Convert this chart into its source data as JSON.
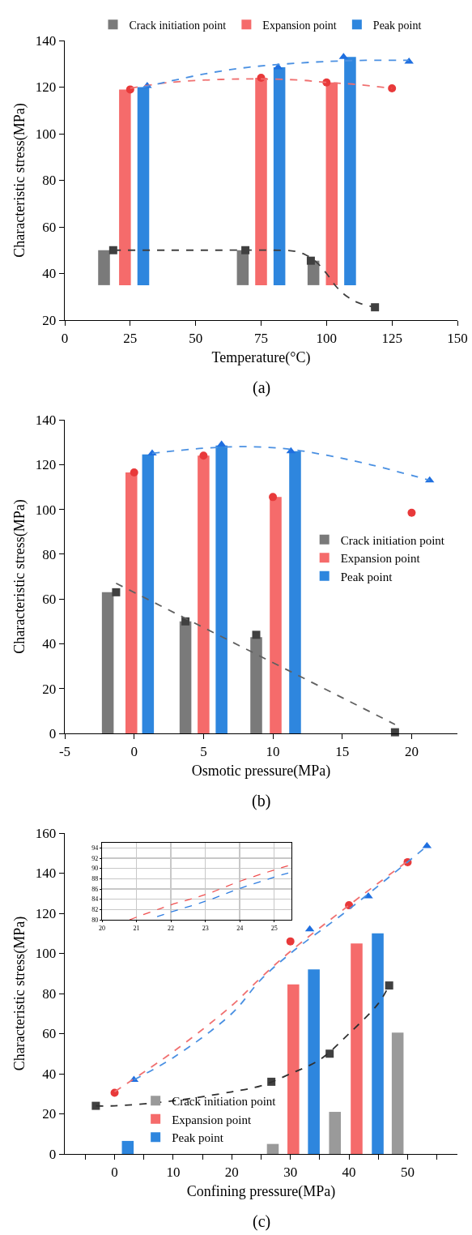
{
  "chart_data": [
    {
      "type": "bar",
      "xlabel": "Temperature(°C)",
      "ylabel": "Characteristic stress(MPa)",
      "annotations": [
        "(a)"
      ],
      "xlim": [
        0,
        150
      ],
      "xticks": [
        0,
        25,
        50,
        75,
        100,
        125,
        150
      ],
      "ylim": [
        20,
        140
      ],
      "yticks": [
        20,
        40,
        60,
        80,
        100,
        120,
        140
      ],
      "legend": "top",
      "series": [
        {
          "name": "Crack initiation point",
          "color": "#7a7a7a",
          "x": [
            15,
            68,
            95
          ],
          "base": [
            35,
            35,
            35
          ],
          "values": [
            15,
            15,
            10.5
          ]
        },
        {
          "name": "Expansion point",
          "color": "#f56b6b",
          "x": [
            23,
            75,
            102
          ],
          "base": [
            35,
            35,
            35
          ],
          "values": [
            84,
            89,
            87
          ]
        },
        {
          "name": "Peak point",
          "color": "#2e86de",
          "x": [
            30,
            82,
            109
          ],
          "base": [
            35,
            35,
            35
          ],
          "values": [
            85,
            93.5,
            98
          ]
        },
        {
          "type": "scatter",
          "marker": "square",
          "color": "#404040",
          "x": [
            18.5,
            69,
            94,
            118.5
          ],
          "values": [
            50,
            50,
            45.5,
            25.5
          ]
        },
        {
          "type": "scatter",
          "marker": "circle",
          "color": "#e8393a",
          "x": [
            25,
            75,
            100,
            125
          ],
          "values": [
            119,
            124,
            122,
            119.5
          ]
        },
        {
          "type": "scatter",
          "marker": "triangle",
          "color": "#1f6fe0",
          "x": [
            31.5,
            81.5,
            106.5,
            131.5
          ],
          "values": [
            120.5,
            128.5,
            133,
            131
          ]
        },
        {
          "type": "line",
          "line_style": "dashed",
          "color": "#404040",
          "x": [
            18.5,
            40,
            60,
            80,
            88,
            92,
            96,
            100,
            104,
            108,
            112,
            118.5
          ],
          "values": [
            50,
            50,
            50,
            50,
            49.5,
            48,
            45,
            40,
            34,
            30,
            27.5,
            25.5
          ]
        },
        {
          "type": "line",
          "line_style": "dashed",
          "color": "#f07070",
          "x": [
            25,
            40,
            60,
            75,
            90,
            100,
            110,
            125
          ],
          "values": [
            119.5,
            122,
            123.3,
            123.5,
            123,
            122,
            121.3,
            119.5
          ]
        },
        {
          "type": "line",
          "line_style": "dashed",
          "color": "#4a90e2",
          "x": [
            30,
            40,
            55,
            70,
            85,
            100,
            115,
            131.5
          ],
          "values": [
            120,
            122.5,
            126,
            128.5,
            130,
            131,
            131.5,
            131.5
          ]
        }
      ]
    },
    {
      "type": "bar",
      "xlabel": "Osmotic pressure(MPa)",
      "ylabel": "Characteristic stress(MPa)",
      "annotations": [
        "(b)"
      ],
      "xlim": [
        -5,
        23.3
      ],
      "xticks": [
        -5,
        0,
        5,
        10,
        15,
        20
      ],
      "ylim": [
        0,
        140
      ],
      "yticks": [
        0,
        20,
        40,
        60,
        80,
        100,
        120,
        140
      ],
      "legend": "right",
      "series": [
        {
          "name": "Crack initiation point",
          "color": "#7a7a7a",
          "x": [
            -1.9,
            3.7,
            8.8
          ],
          "values": [
            63,
            50,
            43
          ]
        },
        {
          "name": "Expansion point",
          "color": "#f56b6b",
          "x": [
            -0.2,
            5,
            10.2
          ],
          "values": [
            116.5,
            124,
            105.5
          ]
        },
        {
          "name": "Peak point",
          "color": "#2e86de",
          "x": [
            1,
            6.3,
            11.6
          ],
          "values": [
            124.5,
            128.5,
            126
          ]
        },
        {
          "type": "scatter",
          "marker": "square",
          "color": "#404040",
          "x": [
            -1.3,
            3.7,
            8.8,
            18.8
          ],
          "values": [
            63,
            50,
            44,
            0.5
          ]
        },
        {
          "type": "scatter",
          "marker": "circle",
          "color": "#e8393a",
          "x": [
            0,
            5,
            10,
            20
          ],
          "values": [
            116.5,
            124,
            105.5,
            98.5
          ]
        },
        {
          "type": "scatter",
          "marker": "triangle",
          "color": "#1f6fe0",
          "x": [
            1.3,
            6.3,
            11.3,
            21.3
          ],
          "values": [
            125,
            129,
            126,
            113
          ]
        },
        {
          "type": "line",
          "line_style": "dashed",
          "color": "#606060",
          "x": [
            -1.3,
            18.8
          ],
          "values": [
            67,
            4
          ]
        },
        {
          "type": "line",
          "line_style": "dashed",
          "color": "#4a90e2",
          "x": [
            1.3,
            5,
            8,
            11,
            14,
            17,
            21.3
          ],
          "values": [
            125,
            127.3,
            128,
            127,
            124,
            120,
            113
          ]
        }
      ]
    },
    {
      "type": "bar",
      "xlabel": "Confining pressure(MPa)",
      "ylabel": "Characteristic stress(MPa)",
      "annotations": [
        "(c)"
      ],
      "xlim": [
        -8.5,
        58.5
      ],
      "xticks": [
        {
          "value": -5,
          "label": null
        },
        0,
        {
          "value": 5,
          "label": null
        },
        10,
        {
          "value": 15,
          "label": null
        },
        20,
        {
          "value": 25,
          "label": null
        },
        30,
        {
          "value": 35,
          "label": null
        },
        40,
        {
          "value": 45,
          "label": null
        },
        50,
        {
          "value": 55,
          "label": null
        }
      ],
      "ylim": [
        0,
        160
      ],
      "yticks": [
        0,
        20,
        40,
        60,
        80,
        100,
        120,
        140,
        160
      ],
      "legend": "bottom left",
      "series": [
        {
          "name": "Crack initiation point",
          "color": "#9a9a9a",
          "x": [
            27,
            37.6,
            48.3
          ],
          "values": [
            5,
            21,
            60.5
          ]
        },
        {
          "name": "Expansion point",
          "color": "#f56b6b",
          "x": [
            30.5,
            41.3
          ],
          "values": [
            84.5,
            105
          ]
        },
        {
          "name": "Peak point",
          "color": "#2e86de",
          "x": [
            2.25,
            34,
            44.9
          ],
          "values": [
            6.5,
            92,
            110
          ]
        },
        {
          "type": "scatter",
          "marker": "square",
          "color": "#404040",
          "x": [
            -3.2,
            26.75,
            36.7,
            46.85
          ],
          "values": [
            24,
            36,
            50,
            84
          ]
        },
        {
          "type": "scatter",
          "marker": "circle",
          "color": "#e8393a",
          "x": [
            0,
            30,
            40,
            50
          ],
          "values": [
            30.5,
            106,
            124,
            145.5
          ]
        },
        {
          "type": "scatter",
          "marker": "triangle",
          "color": "#1f6fe0",
          "x": [
            3.3,
            33.3,
            43.3,
            53.3
          ],
          "values": [
            37,
            112,
            128.5,
            153.5
          ]
        },
        {
          "type": "line",
          "line_style": "dashed",
          "color": "#303030",
          "x": [
            -3.2,
            0,
            10,
            20,
            25,
            30,
            35,
            40,
            45,
            46.85
          ],
          "values": [
            24,
            24,
            26.5,
            31,
            34,
            40,
            47,
            60,
            75,
            84
          ]
        },
        {
          "type": "line",
          "line_style": "dashed",
          "color": "#f07070",
          "x": [
            0,
            10,
            20,
            25,
            30,
            40,
            50
          ],
          "values": [
            31,
            51,
            74,
            88,
            101,
            124,
            146
          ]
        },
        {
          "type": "line",
          "line_style": "dashed",
          "color": "#4a90e2",
          "x": [
            3.3,
            10,
            20,
            25,
            30,
            40,
            53.3
          ],
          "values": [
            37,
            48,
            70,
            87,
            100,
            122,
            153.5
          ]
        }
      ]
    },
    {
      "type": "line",
      "grid": true,
      "xlim": [
        20,
        25.5
      ],
      "xticks": [
        20,
        21,
        22,
        23,
        24,
        25
      ],
      "ylim": [
        80,
        95
      ],
      "yticks": [
        80,
        82,
        84,
        86,
        88,
        90,
        92,
        94
      ],
      "series": [
        {
          "line_style": "dashed",
          "color": "#f05050",
          "x": [
            20.8,
            22,
            23,
            24,
            25,
            25.5
          ],
          "values": [
            80,
            82.9,
            84.9,
            87.5,
            89.7,
            90.7
          ]
        },
        {
          "line_style": "dashed",
          "color": "#2f7de0",
          "x": [
            21.6,
            22,
            23,
            24,
            25,
            25.5
          ],
          "values": [
            80.6,
            81.5,
            83.6,
            86.1,
            88.3,
            89.3
          ]
        }
      ]
    }
  ]
}
